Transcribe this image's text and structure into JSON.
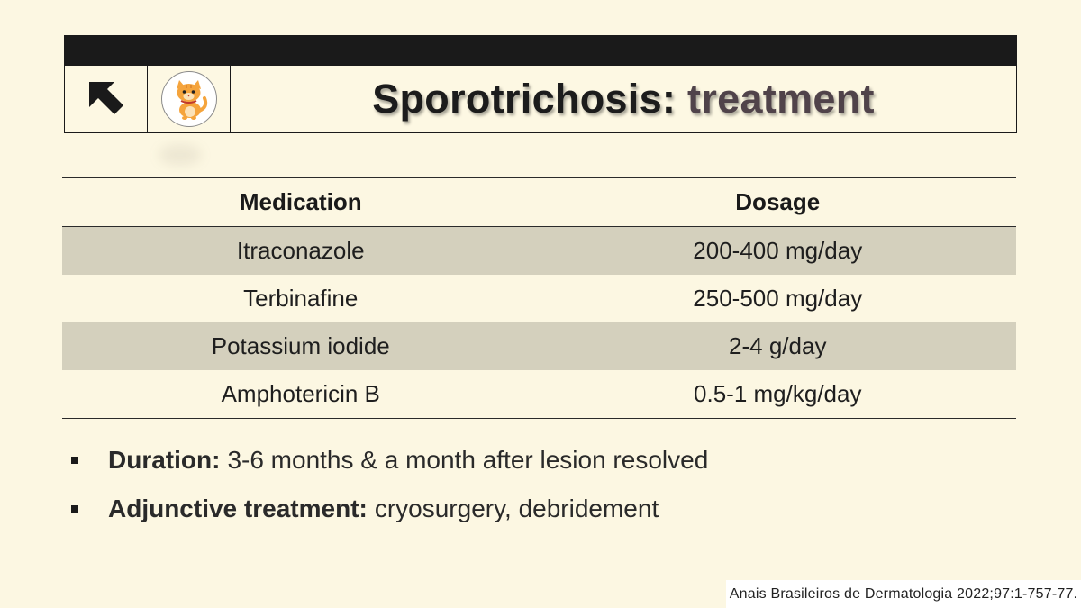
{
  "header": {
    "title_part1": "Sporotrichosis:",
    "title_part2": "treatment",
    "back_icon": "arrow-up-left-icon",
    "logo_icon": "cat-icon"
  },
  "table": {
    "headers": [
      "Medication",
      "Dosage"
    ],
    "rows": [
      [
        "Itraconazole",
        "200-400 mg/day"
      ],
      [
        "Terbinafine",
        "250-500 mg/day"
      ],
      [
        "Potassium iodide",
        "2-4 g/day"
      ],
      [
        "Amphotericin B",
        "0.5-1 mg/kg/day"
      ]
    ]
  },
  "bullets": [
    {
      "label": "Duration:",
      "text": "3-6 months & a month after lesion resolved"
    },
    {
      "label": "Adjunctive treatment:",
      "text": "cryosurgery, debridement"
    }
  ],
  "citation": "Anais Brasileiros de Dermatologia 2022;97:1-757-77.",
  "colors": {
    "background": "#fcf7e2",
    "header_bar": "#1a1a1a",
    "row_shade": "#d4d0bd",
    "title_accent": "#50434a",
    "cat": "#f5a43c"
  }
}
